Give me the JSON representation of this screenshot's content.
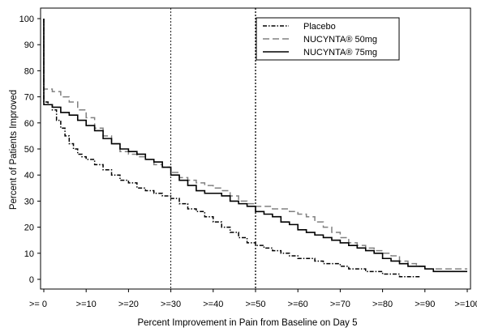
{
  "chart_data": {
    "type": "line",
    "title": "",
    "xlabel": "Percent Improvement in Pain from Baseline on Day 5",
    "ylabel": "Percent of Patients Improved",
    "xlim": [
      0,
      100
    ],
    "ylim": [
      0,
      100
    ],
    "x_tick_labels": [
      {
        "value": 0,
        "label": ">= 0"
      },
      {
        "value": 10,
        "label": ">=10"
      },
      {
        "value": 20,
        "label": ">=20"
      },
      {
        "value": 30,
        "label": ">=30"
      },
      {
        "value": 40,
        "label": ">=40"
      },
      {
        "value": 50,
        "label": ">=50"
      },
      {
        "value": 60,
        "label": ">=60"
      },
      {
        "value": 70,
        "label": ">=70"
      },
      {
        "value": 80,
        "label": ">=80"
      },
      {
        "value": 90,
        "label": ">=90"
      },
      {
        "value": 100,
        "label": ">=100"
      }
    ],
    "y_ticks": [
      0,
      10,
      20,
      30,
      40,
      50,
      60,
      70,
      80,
      90,
      100
    ],
    "reference_lines_x": [
      30,
      50
    ],
    "grid": false,
    "legend_position": "top-right",
    "series": [
      {
        "name": "Placebo",
        "style": "dash-dot",
        "color": "#000000",
        "x": [
          0,
          1,
          2,
          3,
          4,
          5,
          6,
          7,
          8,
          9,
          10,
          12,
          14,
          16,
          18,
          20,
          22,
          24,
          26,
          28,
          30,
          32,
          34,
          36,
          38,
          40,
          42,
          44,
          46,
          48,
          50,
          52,
          54,
          56,
          58,
          60,
          62,
          64,
          66,
          68,
          70,
          72,
          74,
          76,
          78,
          80,
          82,
          84,
          86,
          88,
          89
        ],
        "y": [
          68,
          67,
          65,
          61,
          58,
          55,
          52,
          50,
          48,
          47,
          46,
          44,
          42,
          40,
          38,
          37,
          35,
          34,
          33,
          32,
          31,
          29,
          27,
          26,
          24,
          22,
          20,
          18,
          16,
          14,
          13,
          12,
          11,
          10,
          9,
          8,
          8,
          7,
          6,
          6,
          5,
          4,
          4,
          3,
          3,
          2,
          2,
          1,
          1,
          1,
          1
        ]
      },
      {
        "name": "NUCYNTA® 50mg",
        "style": "dashed",
        "color": "#808080",
        "x": [
          0,
          2,
          4,
          6,
          8,
          10,
          12,
          14,
          16,
          18,
          20,
          22,
          24,
          26,
          28,
          30,
          32,
          34,
          36,
          38,
          40,
          42,
          44,
          46,
          48,
          50,
          52,
          54,
          56,
          58,
          60,
          62,
          64,
          66,
          68,
          70,
          72,
          74,
          76,
          78,
          80,
          82,
          84,
          86,
          88,
          90,
          92,
          94,
          96,
          98,
          100
        ],
        "y": [
          73,
          72,
          70,
          68,
          65,
          62,
          58,
          55,
          52,
          49,
          48,
          47,
          46,
          44,
          43,
          41,
          39,
          38,
          37,
          36,
          35,
          34,
          32,
          30,
          29,
          28,
          28,
          27,
          27,
          26,
          25,
          24,
          22,
          20,
          18,
          16,
          14,
          13,
          12,
          11,
          10,
          9,
          7,
          6,
          5,
          4,
          4,
          4,
          4,
          4,
          4
        ]
      },
      {
        "name": "NUCYNTA® 75mg",
        "style": "solid",
        "color": "#000000",
        "x": [
          0,
          2,
          4,
          6,
          8,
          10,
          12,
          14,
          16,
          18,
          20,
          22,
          24,
          26,
          28,
          30,
          32,
          34,
          36,
          38,
          40,
          42,
          44,
          46,
          48,
          50,
          52,
          54,
          56,
          58,
          60,
          62,
          64,
          66,
          68,
          70,
          72,
          74,
          76,
          78,
          80,
          82,
          84,
          86,
          88,
          90,
          92,
          94,
          96,
          98,
          100
        ],
        "y": [
          67,
          66,
          64,
          63,
          61,
          59,
          57,
          54,
          52,
          50,
          49,
          48,
          46,
          45,
          43,
          40,
          38,
          36,
          34,
          33,
          33,
          32,
          30,
          29,
          28,
          26,
          25,
          24,
          22,
          21,
          19,
          18,
          17,
          16,
          15,
          14,
          13,
          12,
          11,
          10,
          8,
          7,
          6,
          5,
          5,
          4,
          3,
          3,
          3,
          3,
          3
        ]
      }
    ]
  }
}
